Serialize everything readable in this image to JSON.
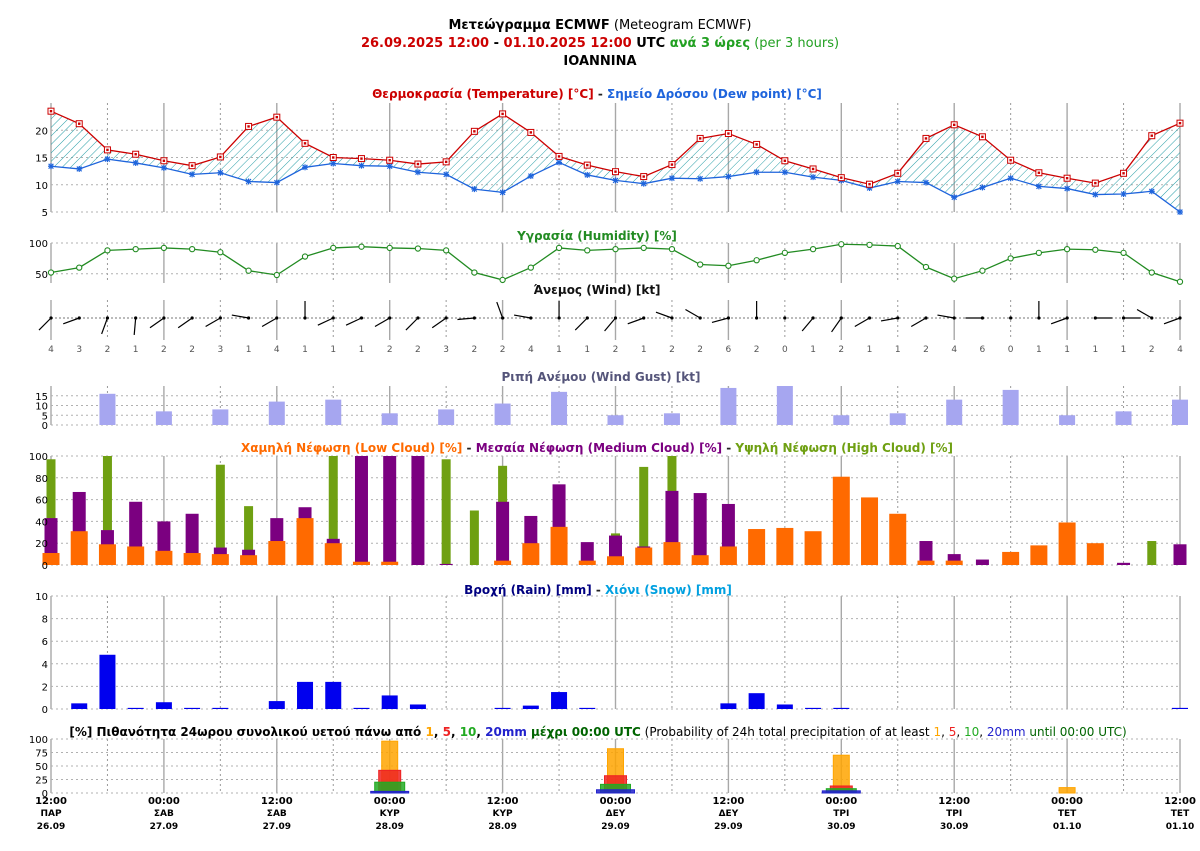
{
  "header": {
    "title_bold": "Μετεώγραμμα ECMWF",
    "title_rest": " (Meteogram ECMWF)",
    "date_from": "26.09.2025 12:00",
    "date_sep": " - ",
    "date_to": "01.10.2025 12:00",
    "utc": " UTC",
    "step_gr": " ανά 3 ώρες",
    "step_en": " (per 3 hours)",
    "location": "IOANNINA"
  },
  "panels": {
    "temperature": {
      "t1": "Θερμοκρασία (Temperature) [°C]",
      "sep": " - ",
      "t2": "Σημείο Δρόσου (Dew point) [°C]"
    },
    "humidity": {
      "t1": "Υγρασία (Humidity) [%]"
    },
    "wind": {
      "t1": "Άνεμος (Wind) [kt]"
    },
    "gust": {
      "t1": "Ριπή Ανέμου (Wind Gust) [kt]"
    },
    "cloud": {
      "t1": "Χαμηλή Νέφωση (Low Cloud) [%]",
      "sep": " - ",
      "t2": "Μεσαία Νέφωση (Medium Cloud) [%]",
      "sep2": " - ",
      "t3": "Υψηλή Νέφωση (High Cloud) [%]"
    },
    "rain": {
      "t1": "Βροχή (Rain) [mm]",
      "sep": " - ",
      "t2": "Χιόνι (Snow) [mm]"
    },
    "prob": {
      "p1": "[%] Πιθανότητα 24ωρου συνολικού υετού πάνω από ",
      "th1": "1",
      "c1": ", ",
      "th2": "5",
      "c2": ", ",
      "th3": "10",
      "c3": ", ",
      "th4": "20mm",
      "p2": " μέχρι 00:00 UTC",
      "e1": " (Probability of 24h total precipitation of at least ",
      "eth1": "1",
      "ec1": ", ",
      "eth2": "5",
      "ec2": ", ",
      "eth3": "10",
      "ec3": ", ",
      "eth4": "20mm",
      "e2": " until 00:00 UTC)"
    }
  },
  "colors": {
    "temperature": "#cc0000",
    "dew_point": "#1e64dc",
    "humidity": "#228b22",
    "gust": "#a6a6f0",
    "low_cloud": "#ff6a00",
    "medium_cloud": "#7b0080",
    "high_cloud": "#6fa012",
    "rain": "#0000ee",
    "snow": "#00a0e0",
    "date_red": "#cc0000",
    "step_green": "#22a022",
    "p1": "#ffa500",
    "p5": "#ee2222",
    "p10": "#22aa22",
    "p20": "#2222cc"
  },
  "x_axis": {
    "times": [
      "12:00",
      "00:00",
      "12:00",
      "00:00",
      "12:00",
      "00:00",
      "12:00",
      "00:00",
      "12:00",
      "00:00",
      "12:00"
    ],
    "days": [
      "ΠΑΡ",
      "ΣΑΒ",
      "ΣΑΒ",
      "ΚΥΡ",
      "ΚΥΡ",
      "ΔΕΥ",
      "ΔΕΥ",
      "ΤΡΙ",
      "ΤΡΙ",
      "ΤΕΤ",
      "ΤΕΤ"
    ],
    "dates": [
      "26.09",
      "27.09",
      "27.09",
      "28.09",
      "28.09",
      "29.09",
      "29.09",
      "30.09",
      "30.09",
      "01.10",
      "01.10"
    ]
  },
  "chart_data": [
    {
      "type": "line",
      "title": "Θερμοκρασία (Temperature) [°C] - Σημείο Δρόσου (Dew point) [°C]",
      "x_step_hours": 3,
      "x_start": "26.09.2025 12:00",
      "ylim": [
        5,
        25
      ],
      "yticks": [
        5,
        10,
        15,
        20
      ],
      "series": [
        {
          "name": "Θερμοκρασία (Temperature)",
          "values": [
            23.5,
            21.2,
            16.4,
            15.6,
            14.4,
            13.5,
            15.1,
            20.7,
            22.4,
            17.6,
            15.0,
            14.8,
            14.5,
            13.8,
            14.2,
            19.8,
            23.0,
            19.6,
            15.2,
            13.6,
            12.4,
            11.5,
            13.7,
            18.5,
            19.4,
            17.4,
            14.4,
            12.9,
            11.3,
            10.1,
            12.1,
            18.5,
            21.0,
            18.8,
            14.5,
            12.2,
            11.2,
            10.3,
            12.1,
            19.0,
            21.3
          ]
        },
        {
          "name": "Σημείο Δρόσου (Dew point)",
          "values": [
            13.4,
            12.9,
            14.7,
            14.0,
            13.1,
            11.9,
            12.2,
            10.6,
            10.4,
            13.2,
            13.9,
            13.5,
            13.4,
            12.3,
            11.9,
            9.2,
            8.6,
            11.6,
            14.1,
            11.8,
            10.8,
            10.2,
            11.2,
            11.1,
            11.5,
            12.3,
            12.3,
            11.4,
            10.8,
            9.4,
            10.6,
            10.4,
            7.7,
            9.5,
            11.2,
            9.7,
            9.3,
            8.2,
            8.3,
            8.8,
            5.0
          ]
        }
      ]
    },
    {
      "type": "line",
      "title": "Υγρασία (Humidity) [%]",
      "ylim": [
        35,
        100
      ],
      "yticks": [
        50,
        100
      ],
      "series": [
        {
          "name": "Υγρασία (Humidity)",
          "values": [
            52,
            60,
            88,
            90,
            92,
            90,
            85,
            55,
            48,
            78,
            92,
            94,
            92,
            91,
            88,
            52,
            40,
            60,
            92,
            88,
            90,
            92,
            90,
            65,
            63,
            72,
            84,
            90,
            98,
            97,
            95,
            61,
            42,
            55,
            75,
            84,
            90,
            89,
            84,
            52,
            37
          ]
        }
      ]
    },
    {
      "type": "table",
      "title": "Άνεμος (Wind) [kt]",
      "speed": [
        4,
        3,
        2,
        1,
        2,
        2,
        3,
        1,
        4,
        1,
        1,
        1,
        2,
        2,
        3,
        2,
        2,
        4,
        1,
        1,
        2,
        1,
        2,
        2,
        6,
        2,
        0,
        1,
        2,
        1,
        1,
        2,
        4,
        6,
        0,
        1,
        1,
        1,
        1,
        2,
        4
      ],
      "direction_deg": [
        225,
        250,
        200,
        185,
        235,
        235,
        240,
        280,
        240,
        0,
        245,
        245,
        240,
        225,
        235,
        265,
        340,
        280,
        0,
        225,
        220,
        250,
        290,
        300,
        255,
        0,
        0,
        220,
        215,
        240,
        260,
        240,
        280,
        270,
        0,
        0,
        250,
        90,
        90,
        300,
        250
      ]
    },
    {
      "type": "bar",
      "title": "Ριπή Ανέμου (Wind Gust) [kt]",
      "ylim": [
        0,
        20
      ],
      "yticks": [
        0,
        5,
        10,
        15
      ],
      "values": [
        null,
        null,
        16,
        null,
        7,
        null,
        8,
        null,
        12,
        null,
        13,
        null,
        6,
        null,
        8,
        null,
        11,
        null,
        17,
        null,
        5,
        null,
        6,
        null,
        19,
        null,
        20,
        null,
        5,
        null,
        6,
        null,
        13,
        null,
        18,
        null,
        5,
        null,
        7,
        null,
        13
      ]
    },
    {
      "type": "bar",
      "title": "Χαμηλή Νέφωση (Low Cloud) [%] - Μεσαία Νέφωση (Medium Cloud) [%] - Υψηλή Νέφωση (High Cloud) [%]",
      "ylim": [
        0,
        100
      ],
      "yticks": [
        0,
        20,
        40,
        60,
        80,
        100
      ],
      "series": [
        {
          "name": "Υψηλή Νέφωση (High Cloud)",
          "values": [
            97,
            null,
            100,
            null,
            null,
            null,
            92,
            54,
            null,
            null,
            100,
            100,
            null,
            null,
            97,
            50,
            91,
            null,
            null,
            null,
            29,
            90,
            100,
            null,
            null,
            null,
            null,
            null,
            null,
            null,
            null,
            null,
            null,
            null,
            null,
            null,
            null,
            null,
            null,
            22,
            null
          ]
        },
        {
          "name": "Μεσαία Νέφωση (Medium Cloud)",
          "values": [
            43,
            67,
            32,
            58,
            40,
            47,
            16,
            14,
            43,
            53,
            24,
            100,
            100,
            100,
            1,
            null,
            58,
            45,
            74,
            21,
            27,
            17,
            68,
            66,
            56,
            null,
            null,
            null,
            null,
            null,
            null,
            22,
            10,
            5,
            null,
            null,
            null,
            null,
            2,
            null,
            19
          ]
        },
        {
          "name": "Χαμηλή Νέφωση (Low Cloud)",
          "values": [
            11,
            31,
            19,
            17,
            13,
            11,
            10,
            9,
            22,
            43,
            20,
            3,
            3,
            null,
            null,
            null,
            4,
            20,
            35,
            4,
            8,
            16,
            21,
            9,
            17,
            33,
            34,
            31,
            81,
            62,
            47,
            4,
            4,
            null,
            12,
            18,
            39,
            20,
            null,
            null,
            null
          ]
        }
      ]
    },
    {
      "type": "bar",
      "title": "Βροχή (Rain) [mm] - Χιόνι (Snow) [mm]",
      "ylim": [
        0,
        10
      ],
      "yticks": [
        0,
        2,
        4,
        6,
        8,
        10
      ],
      "series": [
        {
          "name": "Βροχή (Rain)",
          "values": [
            null,
            0.5,
            4.8,
            0.1,
            0.6,
            0.1,
            0.1,
            null,
            0.7,
            2.4,
            2.4,
            0.1,
            1.2,
            0.4,
            null,
            null,
            0.1,
            0.3,
            1.5,
            0.1,
            null,
            null,
            null,
            null,
            0.5,
            1.4,
            0.4,
            0.1,
            0.1,
            null,
            null,
            null,
            null,
            null,
            null,
            null,
            null,
            null,
            null,
            null,
            0.1
          ]
        },
        {
          "name": "Χιόνι (Snow)",
          "values": []
        }
      ]
    },
    {
      "type": "bar",
      "title": "[%] Πιθανότητα 24ωρου συνολικού υετού πάνω από 1, 5, 10, 20mm μέχρι 00:00 UTC",
      "ylim": [
        0,
        100
      ],
      "yticks": [
        0,
        25,
        50,
        75,
        100
      ],
      "categories": [
        "00:00 28.09",
        "00:00 29.09",
        "00:00 30.09",
        "00:00 01.10"
      ],
      "series": [
        {
          "name": "1",
          "values": [
            96,
            82,
            70,
            10
          ]
        },
        {
          "name": "5",
          "values": [
            42,
            32,
            13,
            0
          ]
        },
        {
          "name": "10",
          "values": [
            20,
            16,
            8,
            0
          ]
        },
        {
          "name": "20mm",
          "values": [
            3,
            6,
            4,
            0
          ]
        }
      ]
    }
  ]
}
